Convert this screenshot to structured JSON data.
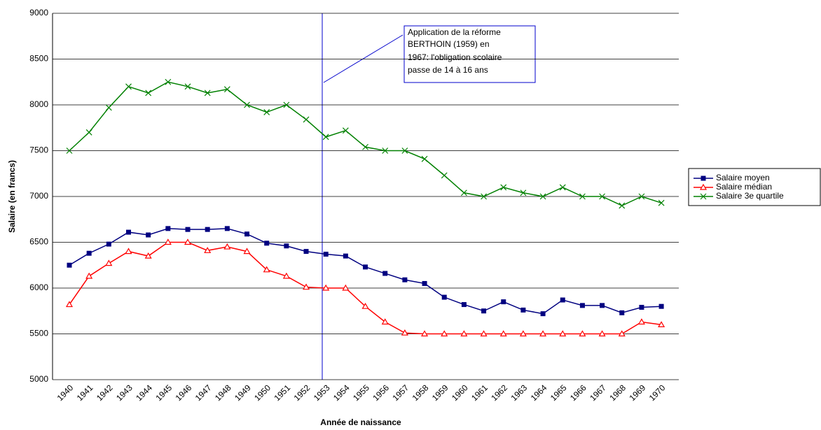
{
  "chart_data": {
    "type": "line",
    "x_label": "Année de naissance",
    "y_label": "Salaire (en francs)",
    "annotation": [
      "Application de la réforme",
      "BERTHOIN (1959) en",
      "1967: l'obligation scolaire",
      "passe de 14 à 16 ans"
    ],
    "categories": [
      "1940",
      "1941",
      "1942",
      "1943",
      "1944",
      "1945",
      "1946",
      "1947",
      "1948",
      "1949",
      "1950",
      "1951",
      "1952",
      "1953",
      "1954",
      "1955",
      "1956",
      "1957",
      "1958",
      "1959",
      "1960",
      "1961",
      "1962",
      "1963",
      "1964",
      "1965",
      "1966",
      "1967",
      "1968",
      "1969",
      "1970"
    ],
    "series": [
      {
        "name": "Salaire moyen",
        "color": "#000080",
        "marker": "square",
        "values": [
          6250,
          6380,
          6480,
          6610,
          6580,
          6650,
          6640,
          6640,
          6650,
          6590,
          6490,
          6460,
          6400,
          6370,
          6350,
          6230,
          6160,
          6090,
          6050,
          5900,
          5820,
          5750,
          5850,
          5760,
          5720,
          5870,
          5810,
          5810,
          5730,
          5790,
          5800
        ]
      },
      {
        "name": "Salaire médian",
        "color": "#ff0000",
        "marker": "triangle",
        "values": [
          5820,
          6130,
          6270,
          6400,
          6350,
          6500,
          6500,
          6410,
          6450,
          6400,
          6200,
          6130,
          6010,
          6000,
          6000,
          5800,
          5630,
          5510,
          5500,
          5500,
          5500,
          5500,
          5500,
          5500,
          5500,
          5500,
          5500,
          5500,
          5500,
          5630,
          5600
        ]
      },
      {
        "name": "Salaire 3e quartile",
        "color": "#008000",
        "marker": "x",
        "values": [
          7500,
          7700,
          7970,
          8200,
          8130,
          8250,
          8200,
          8130,
          8170,
          8000,
          7920,
          8000,
          7840,
          7650,
          7720,
          7540,
          7500,
          7500,
          7410,
          7230,
          7040,
          7000,
          7100,
          7040,
          7000,
          7100,
          7000,
          7000,
          6900,
          7000,
          6930
        ]
      }
    ],
    "ylim": [
      5000,
      9000
    ],
    "yticks": [
      5000,
      5500,
      6000,
      6500,
      7000,
      7500,
      8000,
      8500,
      9000
    ],
    "grid": true
  }
}
